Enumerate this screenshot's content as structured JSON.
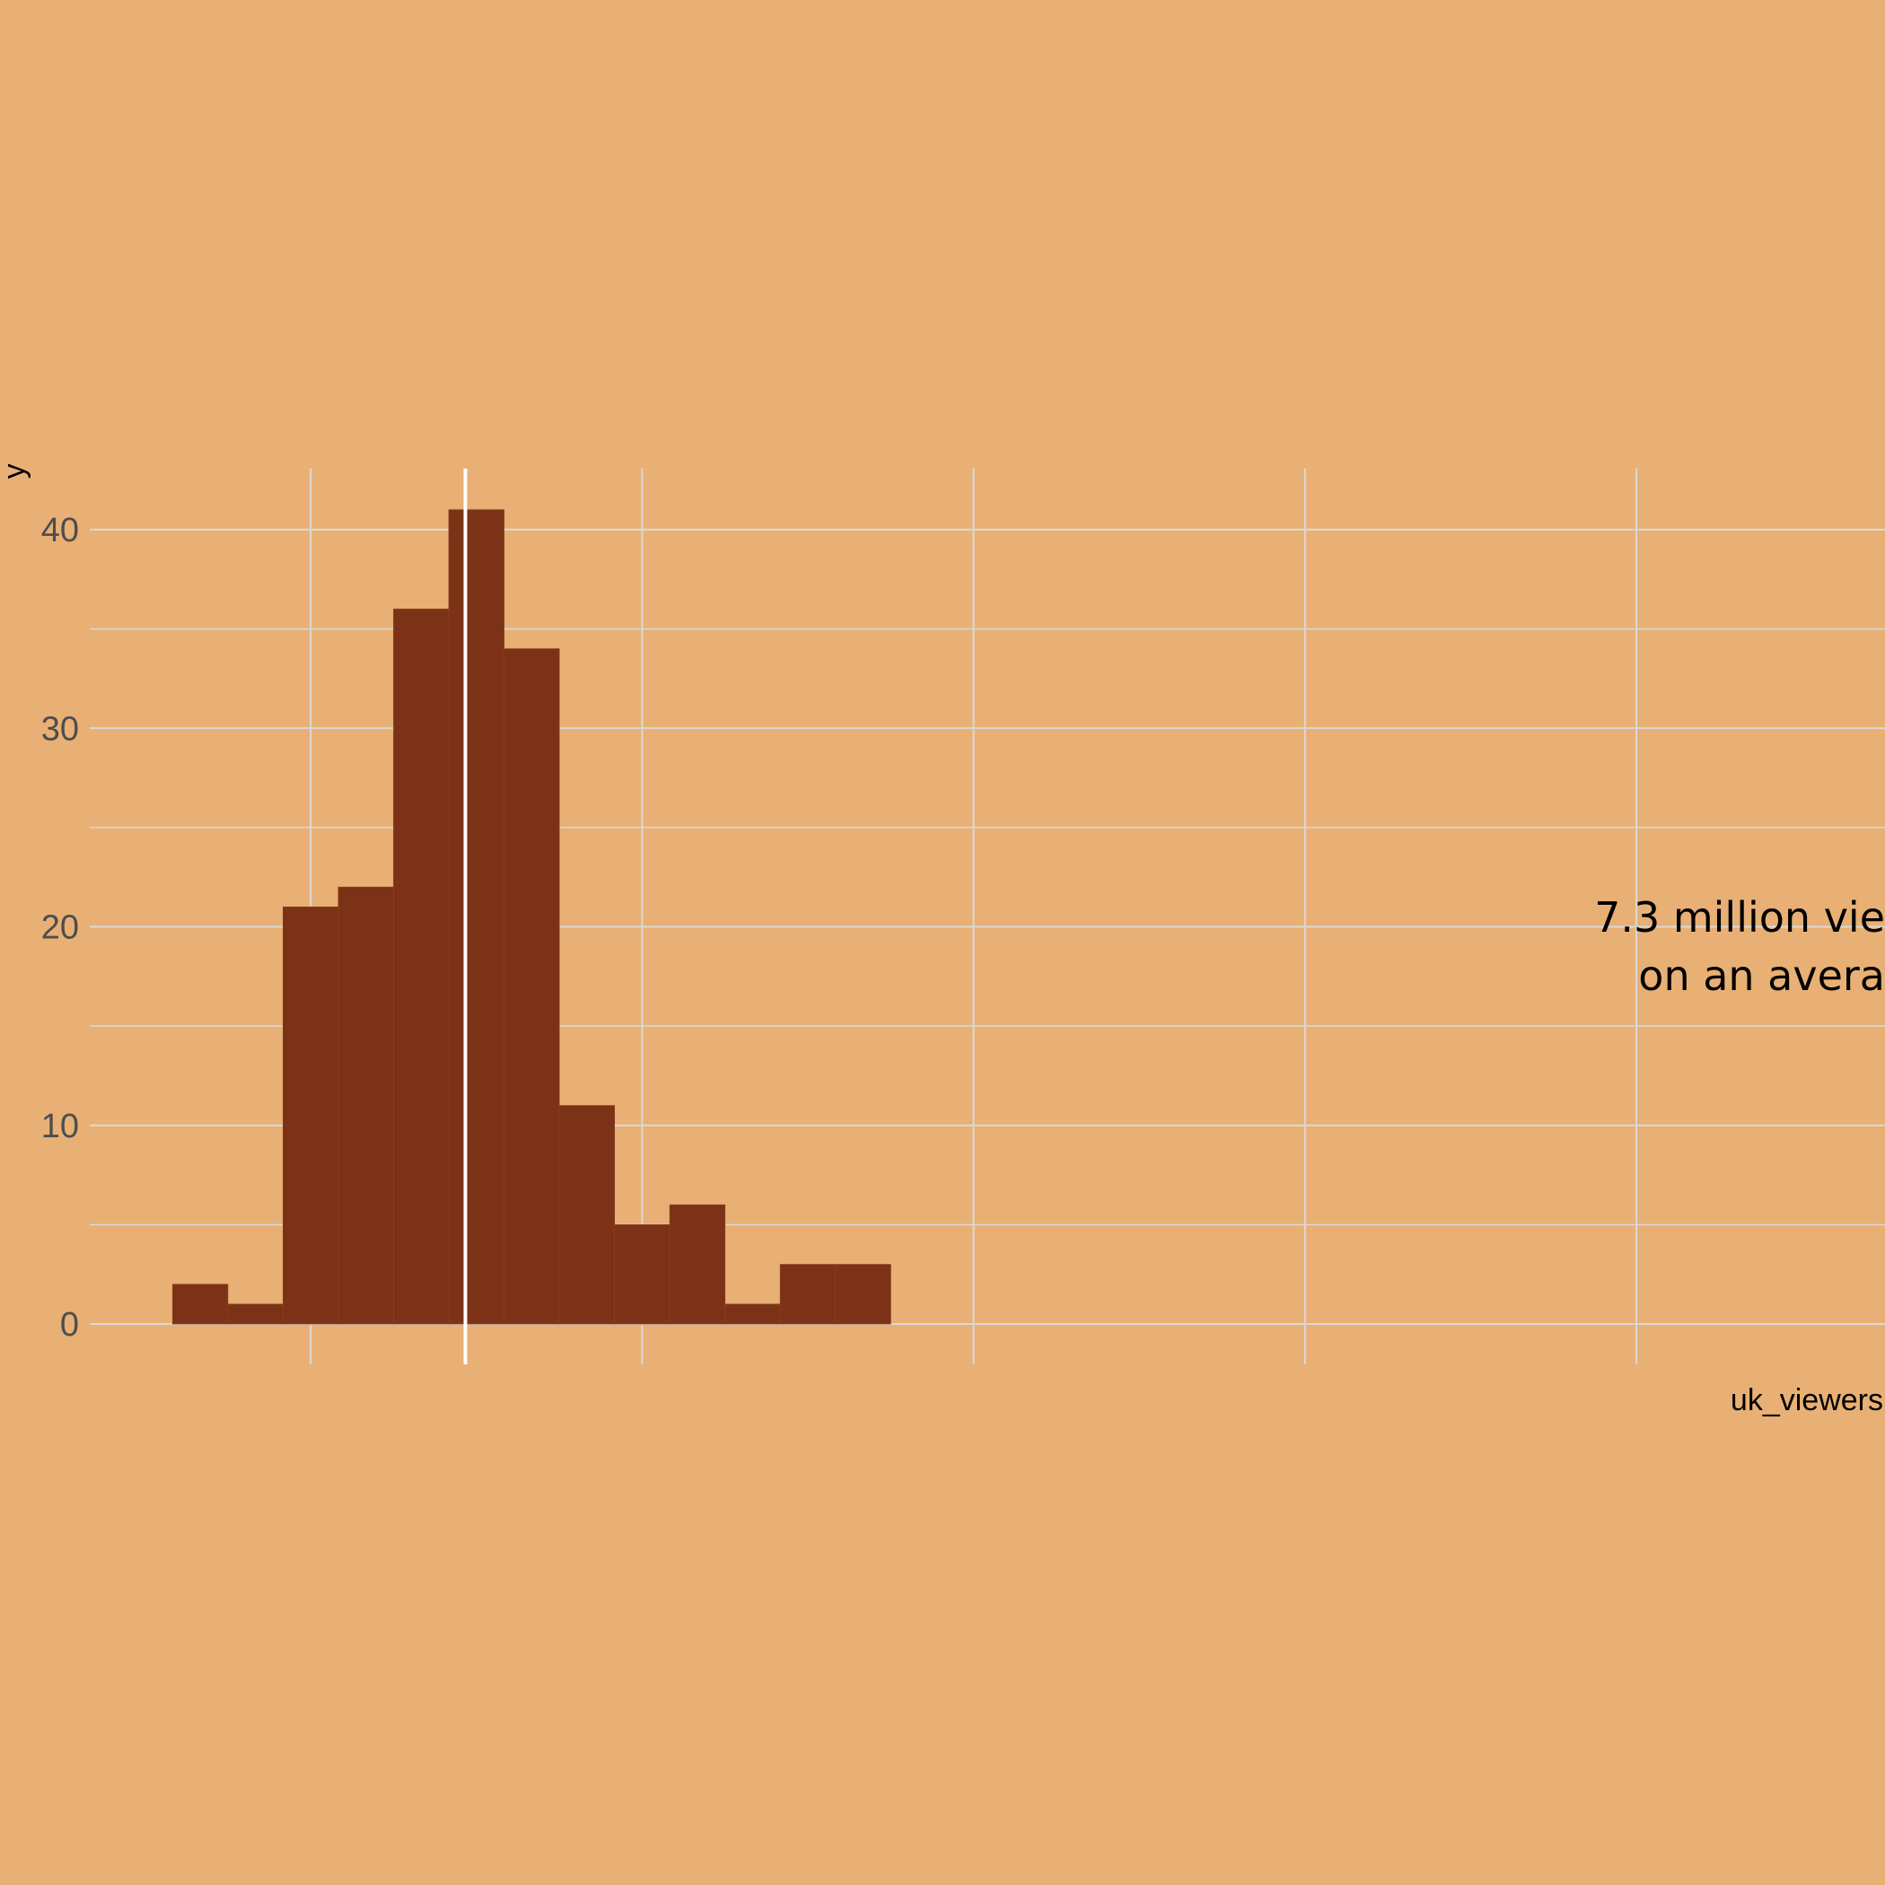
{
  "chart_data": {
    "type": "bar",
    "subtype": "histogram",
    "xlabel": "uk_viewers",
    "ylabel": "y",
    "ylim": [
      0,
      43
    ],
    "y_ticks": [
      0,
      10,
      20,
      30,
      40
    ],
    "bins": [
      {
        "x0": 0.5,
        "x1": 1.0,
        "count": 2
      },
      {
        "x0": 1.0,
        "x1": 1.5,
        "count": 1
      },
      {
        "x0": 1.5,
        "x1": 2.0,
        "count": 21
      },
      {
        "x0": 2.0,
        "x1": 2.5,
        "count": 22
      },
      {
        "x0": 2.5,
        "x1": 3.0,
        "count": 36
      },
      {
        "x0": 3.0,
        "x1": 3.5,
        "count": 41
      },
      {
        "x0": 3.5,
        "x1": 4.0,
        "count": 34
      },
      {
        "x0": 4.0,
        "x1": 4.5,
        "count": 11
      },
      {
        "x0": 4.5,
        "x1": 5.0,
        "count": 5
      },
      {
        "x0": 5.0,
        "x1": 5.5,
        "count": 6
      },
      {
        "x0": 5.5,
        "x1": 6.0,
        "count": 1
      },
      {
        "x0": 6.0,
        "x1": 6.5,
        "count": 3
      },
      {
        "x0": 6.5,
        "x1": 7.0,
        "count": 3
      }
    ],
    "xlim": [
      -0.25,
      16.0
    ],
    "x_gridlines": [
      1.75,
      4.75,
      7.75,
      10.75,
      13.75
    ],
    "mean_line_x": 3.15,
    "annotation_lines": [
      "7.3 million vie",
      "on an avera"
    ],
    "colors": {
      "background": "#E8B074",
      "bar": "#7B3216",
      "grid": "#D9D9D9",
      "mean_line": "#FFFFFF"
    },
    "grid": true,
    "legend": "none"
  }
}
